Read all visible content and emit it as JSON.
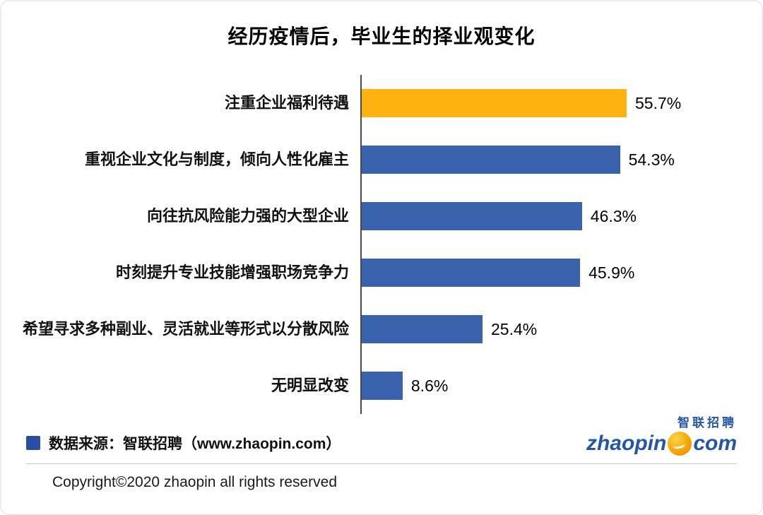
{
  "title": "经历疫情后，毕业生的择业观变化",
  "chart_data": {
    "type": "bar",
    "orientation": "horizontal",
    "title": "经历疫情后，毕业生的择业观变化",
    "categories": [
      "注重企业福利待遇",
      "重视企业文化与制度，倾向人性化雇主",
      "向往抗风险能力强的大型企业",
      "时刻提升专业技能增强职场竞争力",
      "希望寻求多种副业、灵活就业等形式以分散风险",
      "无明显改变"
    ],
    "values": [
      55.7,
      54.3,
      46.3,
      45.9,
      25.4,
      8.6
    ],
    "value_labels": [
      "55.7%",
      "54.3%",
      "46.3%",
      "45.9%",
      "25.4%",
      "8.6%"
    ],
    "xlim": [
      0,
      60
    ],
    "highlight_index": 0,
    "highlight_color": "#FFB313",
    "bar_color": "#3A62AD",
    "grid": false,
    "legend": false
  },
  "footer": {
    "source": "数据来源：智联招聘（www.zhaopin.com）",
    "copyright": "Copyright©2020 zhaopin all rights reserved"
  },
  "logo": {
    "cn": "智联招聘",
    "word_left": "zhaopin",
    "word_right": "com"
  },
  "colors": {
    "legend_square": "#2B4EA2",
    "logo_blue": "#2356A7",
    "logo_ball": "#F7A600",
    "axis_line": "#4A4A4A"
  }
}
